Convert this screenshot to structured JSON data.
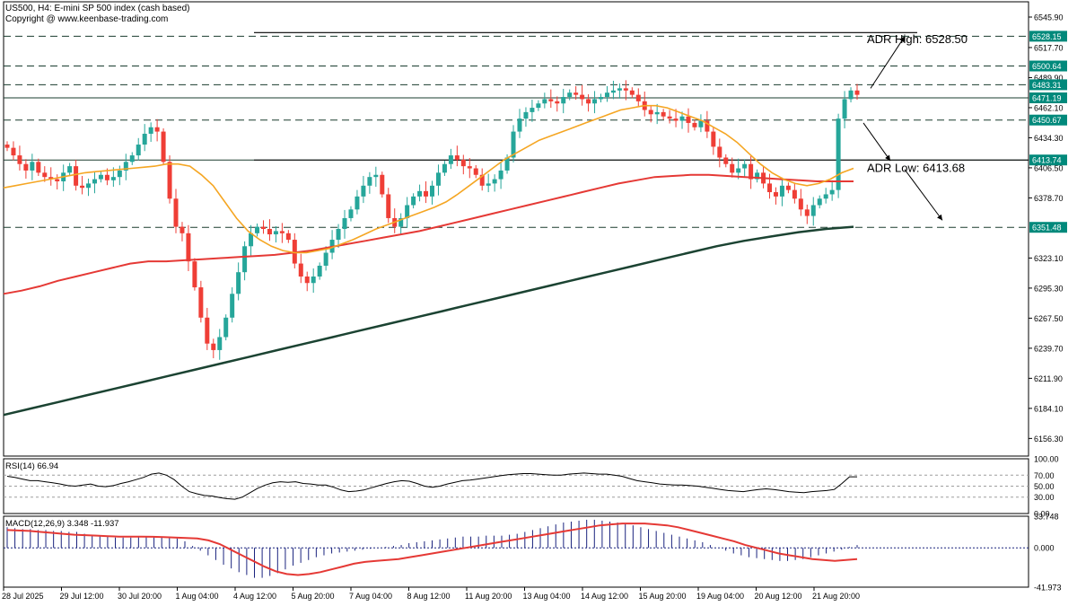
{
  "header": {
    "symbol_line": "US500, H4:  E-mini SP 500 index (cash based)",
    "copyright": "Copyright @ www.keenbase-trading.com"
  },
  "annotations": {
    "adr_high": "ADR High: 6528.50",
    "adr_low": "ADR Low: 6413.68"
  },
  "chart_data": [
    {
      "type": "candlestick",
      "title": "US500, H4",
      "ylim": [
        6140,
        6560
      ],
      "y_ticks": [
        "6545.90",
        "6517.70",
        "6489.90",
        "6462.10",
        "6434.30",
        "6406.50",
        "6378.70",
        "6323.10",
        "6295.30",
        "6267.50",
        "6239.70",
        "6211.90",
        "6184.10",
        "6156.30"
      ],
      "level_tags": [
        {
          "value": 6528.15,
          "label": "6528.15",
          "color": "#00897b",
          "style": "dashed"
        },
        {
          "value": 6500.64,
          "label": "6500.64",
          "color": "#00897b",
          "style": "dashed"
        },
        {
          "value": 6483.31,
          "label": "6483.31",
          "color": "#00897b",
          "style": "dashed"
        },
        {
          "value": 6471.19,
          "label": "6471.19",
          "color": "#00897b",
          "style": "solid"
        },
        {
          "value": 6450.67,
          "label": "6450.67",
          "color": "#00897b",
          "style": "dashed"
        },
        {
          "value": 6413.74,
          "label": "6413.74",
          "color": "#00897b",
          "style": "solid"
        },
        {
          "value": 6351.48,
          "label": "6351.48",
          "color": "#00897b",
          "style": "dashed"
        }
      ],
      "x_labels": [
        "28 Jul 2025",
        "29 Jul 12:00",
        "30 Jul 20:00",
        "1 Aug 04:00",
        "4 Aug 12:00",
        "5 Aug 20:00",
        "7 Aug 04:00",
        "8 Aug 12:00",
        "11 Aug 20:00",
        "13 Aug 04:00",
        "14 Aug 12:00",
        "15 Aug 20:00",
        "19 Aug 04:00",
        "20 Aug 12:00",
        "21 Aug 20:00"
      ],
      "colors": {
        "up": "#26a69a",
        "down": "#ef3e36",
        "ma_fast": "#f5a623",
        "ma_mid": "#e53935",
        "ma_slow": "#1b4332"
      },
      "closes": [
        6425,
        6418,
        6410,
        6404,
        6412,
        6402,
        6398,
        6396,
        6394,
        6402,
        6408,
        6390,
        6388,
        6392,
        6396,
        6400,
        6395,
        6398,
        6404,
        6412,
        6418,
        6428,
        6438,
        6444,
        6440,
        6412,
        6378,
        6352,
        6346,
        6320,
        6296,
        6268,
        6244,
        6238,
        6250,
        6268,
        6290,
        6310,
        6334,
        6346,
        6352,
        6350,
        6345,
        6348,
        6346,
        6340,
        6318,
        6306,
        6300,
        6306,
        6316,
        6328,
        6340,
        6350,
        6360,
        6368,
        6380,
        6390,
        6398,
        6400,
        6382,
        6360,
        6352,
        6360,
        6372,
        6380,
        6385,
        6380,
        6390,
        6402,
        6410,
        6418,
        6414,
        6408,
        6406,
        6400,
        6390,
        6392,
        6396,
        6404,
        6416,
        6440,
        6452,
        6458,
        6462,
        6466,
        6470,
        6468,
        6466,
        6472,
        6476,
        6474,
        6470,
        6466,
        6470,
        6472,
        6476,
        6478,
        6480,
        6478,
        6474,
        6468,
        6460,
        6456,
        6458,
        6454,
        6452,
        6450,
        6454,
        6448,
        6444,
        6450,
        6440,
        6426,
        6416,
        6410,
        6402,
        6406,
        6410,
        6396,
        6402,
        6392,
        6384,
        6380,
        6390,
        6386,
        6378,
        6368,
        6362,
        6372,
        6378,
        6382,
        6386,
        6452,
        6470,
        6478,
        6474
      ],
      "ma_fast": [
        6388,
        6390,
        6392,
        6394,
        6396,
        6398,
        6400,
        6402,
        6403,
        6404,
        6405,
        6406,
        6407,
        6408,
        6410,
        6410,
        6408,
        6400,
        6390,
        6375,
        6360,
        6348,
        6340,
        6334,
        6330,
        6328,
        6328,
        6330,
        6332,
        6336,
        6340,
        6345,
        6350,
        6354,
        6358,
        6362,
        6366,
        6370,
        6375,
        6382,
        6390,
        6398,
        6406,
        6414,
        6420,
        6426,
        6432,
        6436,
        6440,
        6444,
        6448,
        6452,
        6456,
        6460,
        6462,
        6464,
        6464,
        6462,
        6458,
        6454,
        6450,
        6444,
        6438,
        6430,
        6420,
        6410,
        6402,
        6396,
        6392,
        6390,
        6392,
        6396,
        6402,
        6406
      ],
      "ma_mid": [
        6290,
        6293,
        6297,
        6302,
        6306,
        6310,
        6314,
        6318,
        6320,
        6320,
        6321,
        6322,
        6323,
        6324,
        6325,
        6326,
        6328,
        6330,
        6333,
        6336,
        6339,
        6342,
        6345,
        6348,
        6352,
        6356,
        6360,
        6364,
        6368,
        6372,
        6376,
        6380,
        6384,
        6388,
        6392,
        6395,
        6398,
        6399,
        6400,
        6400,
        6399,
        6398,
        6397,
        6396,
        6395,
        6394,
        6394,
        6394
      ],
      "ma_slow": [
        6178,
        6184,
        6190,
        6196,
        6202,
        6208,
        6214,
        6220,
        6226,
        6232,
        6238,
        6244,
        6250,
        6256,
        6262,
        6268,
        6274,
        6280,
        6286,
        6292,
        6298,
        6304,
        6310,
        6316,
        6322,
        6328,
        6334,
        6339,
        6343,
        6347,
        6350,
        6352
      ]
    },
    {
      "type": "line",
      "title": "RSI(14) 66.94",
      "ylim": [
        0,
        100
      ],
      "y_ticks": [
        "100.00",
        "70.00",
        "50.00",
        "30.00",
        "0.00"
      ],
      "values": [
        68,
        66,
        63,
        60,
        60,
        58,
        56,
        54,
        51,
        50,
        52,
        54,
        50,
        49,
        51,
        55,
        58,
        62,
        66,
        72,
        74,
        70,
        62,
        50,
        40,
        36,
        33,
        32,
        29,
        27,
        26,
        30,
        38,
        46,
        52,
        56,
        58,
        57,
        58,
        55,
        54,
        52,
        52,
        48,
        43,
        40,
        41,
        43,
        47,
        51,
        55,
        58,
        60,
        59,
        55,
        50,
        48,
        50,
        54,
        57,
        60,
        61,
        63,
        65,
        67,
        69,
        71,
        72,
        73,
        73,
        72,
        71,
        70,
        70,
        72,
        73,
        74,
        73,
        72,
        72,
        70,
        68,
        64,
        60,
        58,
        56,
        54,
        53,
        52,
        52,
        51,
        50,
        48,
        46,
        44,
        42,
        41,
        40,
        42,
        44,
        45,
        44,
        42,
        40,
        39,
        38,
        40,
        41,
        42,
        44,
        55,
        67,
        67
      ]
    },
    {
      "type": "bar",
      "title": "MACD(12,26,9) 3.348 -11.937",
      "ylim": [
        -41.973,
        33.748
      ],
      "y_ticks": [
        "33.748",
        "0.000",
        "-41.973"
      ],
      "histogram": [
        22,
        21,
        20,
        20,
        19,
        19,
        18,
        18,
        17,
        17,
        15,
        14,
        13,
        12,
        11,
        11,
        11,
        12,
        12,
        12,
        12,
        11,
        10,
        7,
        2,
        -3,
        -8,
        -13,
        -18,
        -22,
        -26,
        -29,
        -32,
        -32,
        -30,
        -27,
        -23,
        -19,
        -16,
        -13,
        -10,
        -8,
        -6,
        -5,
        -4,
        -3,
        -2,
        -1,
        0,
        1,
        2,
        3,
        5,
        6,
        7,
        8,
        9,
        10,
        11,
        12,
        12,
        12,
        13,
        13,
        13,
        14,
        15,
        17,
        19,
        21,
        23,
        25,
        27,
        28,
        29,
        30,
        30,
        29,
        28,
        27,
        26,
        24,
        22,
        20,
        18,
        16,
        14,
        12,
        10,
        8,
        6,
        3,
        0,
        -3,
        -6,
        -8,
        -10,
        -11,
        -12,
        -13,
        -14,
        -14,
        -13,
        -12,
        -10,
        -8,
        -6,
        -4,
        -2,
        1,
        3
      ],
      "signal": [
        19,
        18.5,
        18,
        17,
        16,
        15,
        14,
        13.5,
        13,
        12.5,
        12,
        12,
        12,
        11.8,
        11.5,
        11,
        10.5,
        10,
        8,
        4,
        -2,
        -8,
        -14,
        -20,
        -25,
        -28,
        -29,
        -28,
        -26,
        -23,
        -20,
        -17,
        -15,
        -14,
        -13,
        -12,
        -10,
        -8,
        -6,
        -4,
        -2,
        0,
        2,
        4,
        6,
        8,
        10,
        12,
        14,
        16,
        18,
        20,
        22,
        24,
        25,
        26,
        26,
        26,
        25,
        24,
        22,
        19,
        16,
        13,
        10,
        7,
        3,
        0,
        -3,
        -6,
        -8,
        -10,
        -12,
        -13,
        -14,
        -13,
        -12
      ]
    }
  ]
}
